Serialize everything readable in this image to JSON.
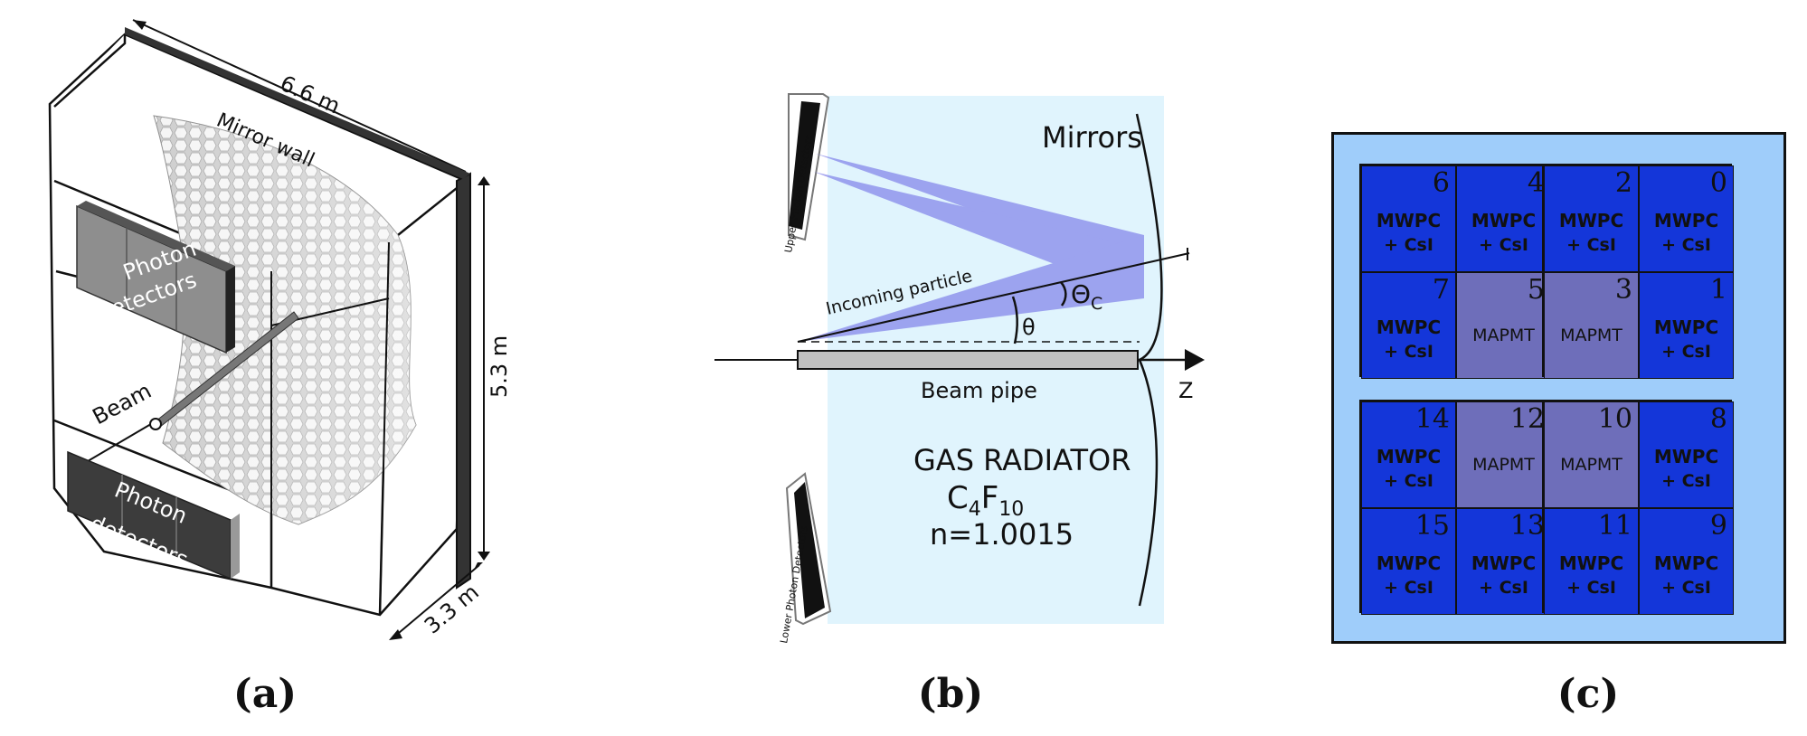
{
  "panel_a": {
    "dim_length": "6.6 m",
    "dim_height": "5.3 m",
    "dim_depth": "3.3 m",
    "mirror_label": "Mirror wall",
    "beam_label": "Beam",
    "detector_top_line1": "Photon",
    "detector_top_line2": "detectors",
    "detector_bottom_line1": "Photon",
    "detector_bottom_line2": "detectors",
    "caption": "(a)"
  },
  "panel_b": {
    "upper_detectors": "Upper Photon Detectors",
    "lower_detectors": "Lower Photon Detectors",
    "mirrors": "Mirrors",
    "incoming": "Incoming particle",
    "theta_c": "Θ",
    "theta_c_sub": "C",
    "theta": "θ",
    "z_label": "Z",
    "beam_pipe": "Beam pipe",
    "radiator_title": "GAS RADIATOR",
    "radiator_formula_c": "C",
    "radiator_formula_c_sub": "4",
    "radiator_formula_f": "F",
    "radiator_formula_f_sub": "10",
    "radiator_index": "n=1.0015",
    "caption": "(b)",
    "colors": {
      "vessel": "#e0f4fd",
      "cone": "#7878e8"
    }
  },
  "panel_c": {
    "caption": "(c)",
    "colors": {
      "frame": "#9fcdfa",
      "mwpc": "#1436d9",
      "mapmt": "#6e6eba"
    },
    "quadrants": [
      {
        "cells": [
          {
            "num": "6",
            "l1": "MWPC",
            "l2": "+ CsI",
            "kind": "mwpc"
          },
          {
            "num": "4",
            "l1": "MWPC",
            "l2": "+ CsI",
            "kind": "mwpc"
          },
          {
            "num": "7",
            "l1": "MWPC",
            "l2": "+ CsI",
            "kind": "mwpc"
          },
          {
            "num": "5",
            "l1": "MAPMT",
            "l2": "",
            "kind": "mapmt"
          }
        ]
      },
      {
        "cells": [
          {
            "num": "2",
            "l1": "MWPC",
            "l2": "+ CsI",
            "kind": "mwpc"
          },
          {
            "num": "0",
            "l1": "MWPC",
            "l2": "+ CsI",
            "kind": "mwpc"
          },
          {
            "num": "3",
            "l1": "MAPMT",
            "l2": "",
            "kind": "mapmt"
          },
          {
            "num": "1",
            "l1": "MWPC",
            "l2": "+ CsI",
            "kind": "mwpc"
          }
        ]
      },
      {
        "cells": [
          {
            "num": "14",
            "l1": "MWPC",
            "l2": "+ CsI",
            "kind": "mwpc"
          },
          {
            "num": "12",
            "l1": "MAPMT",
            "l2": "",
            "kind": "mapmt"
          },
          {
            "num": "15",
            "l1": "MWPC",
            "l2": "+ CsI",
            "kind": "mwpc"
          },
          {
            "num": "13",
            "l1": "MWPC",
            "l2": "+ CsI",
            "kind": "mwpc"
          }
        ]
      },
      {
        "cells": [
          {
            "num": "10",
            "l1": "MAPMT",
            "l2": "",
            "kind": "mapmt"
          },
          {
            "num": "8",
            "l1": "MWPC",
            "l2": "+ CsI",
            "kind": "mwpc"
          },
          {
            "num": "11",
            "l1": "MWPC",
            "l2": "+ CsI",
            "kind": "mwpc"
          },
          {
            "num": "9",
            "l1": "MWPC",
            "l2": "+ CsI",
            "kind": "mwpc"
          }
        ]
      }
    ]
  }
}
